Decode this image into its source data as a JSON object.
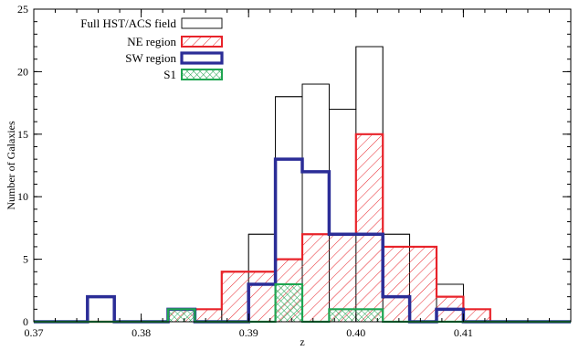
{
  "chart_data": {
    "type": "histogram",
    "xlabel": "z",
    "ylabel": "Number of Galaxies",
    "xlim": [
      0.37,
      0.42
    ],
    "ylim": [
      0,
      25
    ],
    "bin_edges": [
      0.37,
      0.3725,
      0.375,
      0.3775,
      0.38,
      0.3825,
      0.385,
      0.3875,
      0.39,
      0.3925,
      0.395,
      0.3975,
      0.4,
      0.4025,
      0.405,
      0.4075,
      0.41,
      0.4125,
      0.415,
      0.4175,
      0.42
    ],
    "x_ticks": [
      {
        "value": 0.37,
        "label": "0.37"
      },
      {
        "value": 0.38,
        "label": "0.38"
      },
      {
        "value": 0.39,
        "label": "0.39"
      },
      {
        "value": 0.4,
        "label": "0.40"
      },
      {
        "value": 0.41,
        "label": "0.41"
      }
    ],
    "y_ticks": [
      {
        "value": 0,
        "label": "0"
      },
      {
        "value": 5,
        "label": "5"
      },
      {
        "value": 10,
        "label": "10"
      },
      {
        "value": 15,
        "label": "15"
      },
      {
        "value": 20,
        "label": "20"
      },
      {
        "value": 25,
        "label": "25"
      }
    ],
    "legend_position": "top-left",
    "series": [
      {
        "name": "Full HST/ACS field",
        "style": "outline",
        "color": "#000000",
        "values": [
          0,
          0,
          2,
          0,
          0,
          1,
          0,
          4,
          7,
          18,
          19,
          17,
          22,
          7,
          6,
          3,
          1,
          0,
          0,
          0
        ]
      },
      {
        "name": "NE region",
        "style": "hatch",
        "color": "#e8232a",
        "values": [
          0,
          0,
          0,
          0,
          0,
          1,
          1,
          4,
          4,
          5,
          7,
          7,
          15,
          6,
          6,
          2,
          1,
          0,
          0,
          0
        ]
      },
      {
        "name": "SW region",
        "style": "thick",
        "color": "#2b2d97",
        "values": [
          0,
          0,
          2,
          0,
          0,
          1,
          0,
          0,
          3,
          13,
          12,
          7,
          7,
          2,
          0,
          1,
          0,
          0,
          0,
          0
        ]
      },
      {
        "name": "S1",
        "style": "crosshatch",
        "color": "#1fa551",
        "values": [
          0,
          0,
          0,
          0,
          0,
          1,
          0,
          0,
          0,
          3,
          0,
          1,
          1,
          0,
          0,
          0,
          0,
          0,
          0,
          0
        ]
      }
    ]
  }
}
